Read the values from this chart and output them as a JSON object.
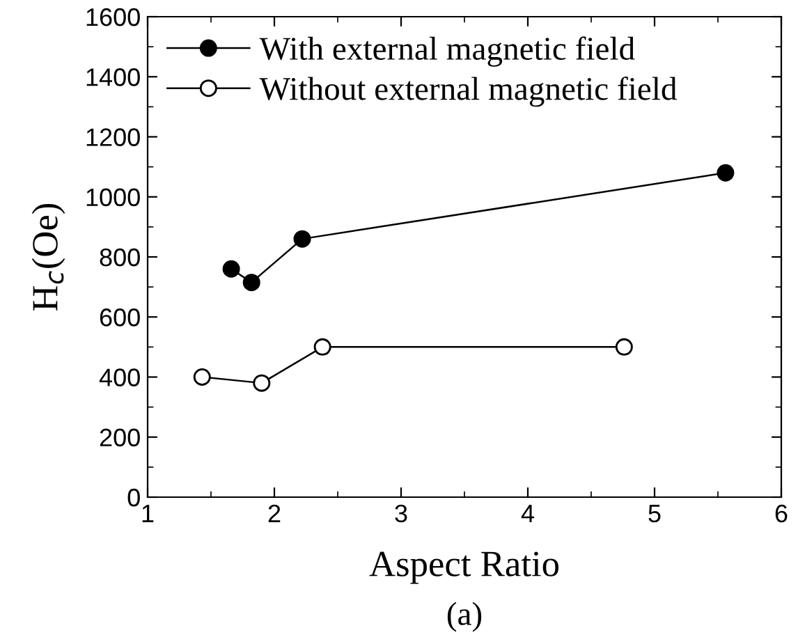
{
  "chart_data": {
    "type": "line",
    "xlabel": "Aspect Ratio",
    "ylabel": "H$_{c}$(Oe)",
    "annotations": [
      "(a)"
    ],
    "xlim": [
      1,
      6
    ],
    "xticks": [
      1,
      2,
      3,
      4,
      5,
      6
    ],
    "ylim": [
      0,
      1600
    ],
    "yticks": [
      0,
      200,
      400,
      600,
      800,
      1000,
      1200,
      1400,
      1600
    ],
    "legend": "top left",
    "grid": false,
    "line_style": "solid",
    "series": [
      {
        "name": "With external magnetic field",
        "color": "#000000",
        "marker": "circle",
        "x": [
          1.66,
          1.82,
          2.22,
          5.56
        ],
        "values": [
          760,
          715,
          860,
          1080
        ]
      },
      {
        "name": "Without external magnetic field",
        "color": "#ffffff",
        "marker": "circle",
        "x": [
          1.43,
          1.9,
          2.38,
          4.76
        ],
        "values": [
          400,
          380,
          500,
          500
        ]
      }
    ]
  }
}
